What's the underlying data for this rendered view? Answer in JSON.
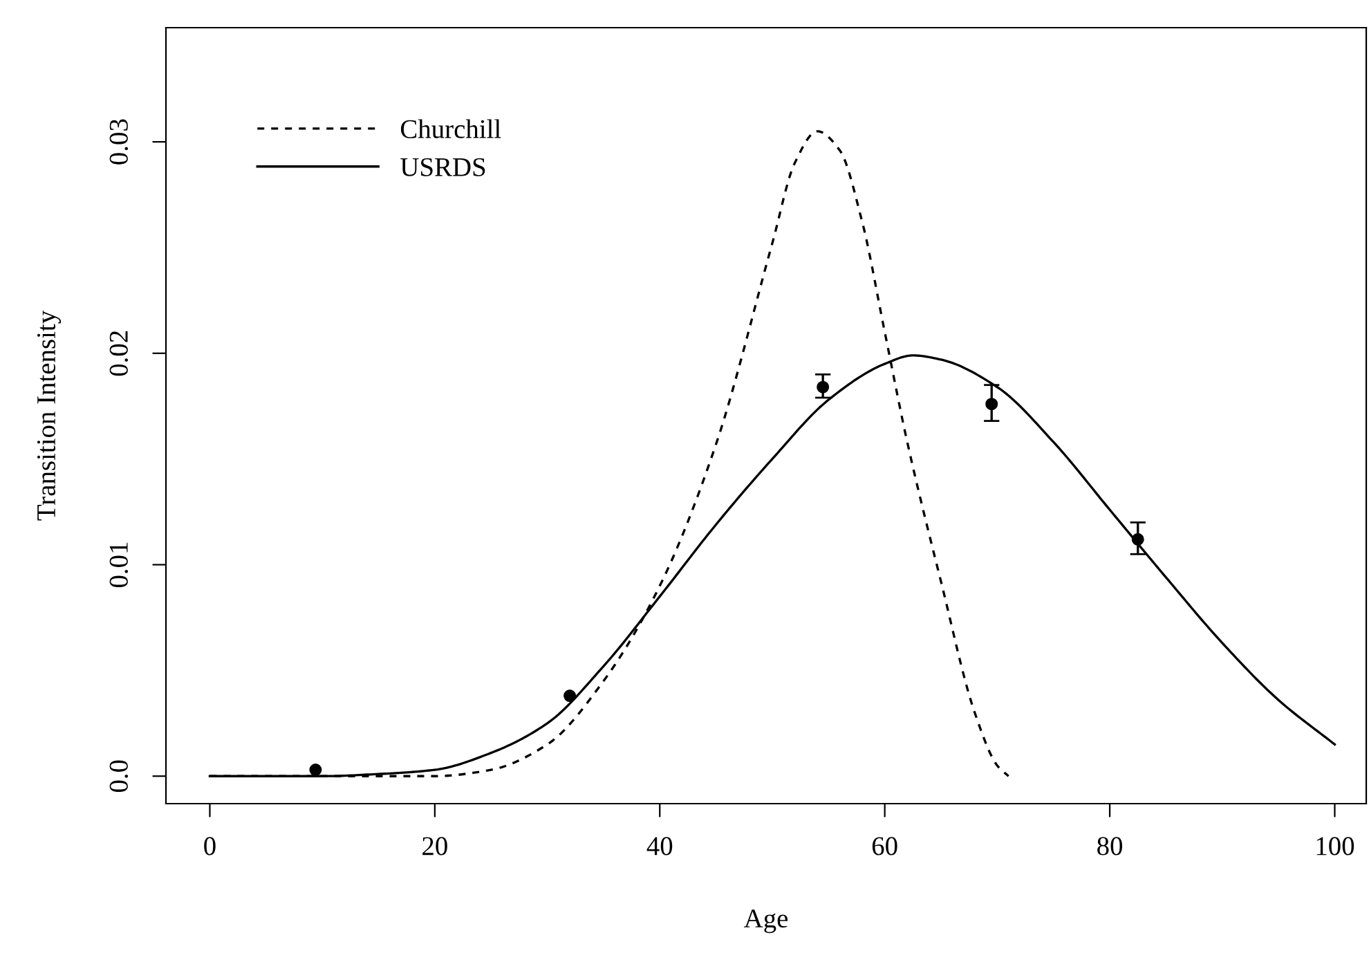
{
  "chart_data": {
    "type": "line",
    "xlabel": "Age",
    "ylabel": "Transition Intensity",
    "xlim": [
      -3.9,
      102.8
    ],
    "ylim": [
      -0.0013,
      0.0354
    ],
    "xticks": [
      0,
      20,
      40,
      60,
      80,
      100
    ],
    "yticks": [
      {
        "value": 0,
        "label": "0.0"
      },
      0.01,
      0.02,
      0.03
    ],
    "grid": false,
    "legend": "top left",
    "series": [
      {
        "name": "Churchill",
        "color": "#000000",
        "line_style": "dashed",
        "x": [
          0,
          20,
          25,
          30,
          35,
          40,
          45,
          50,
          52,
          54,
          56,
          58,
          60,
          62,
          65,
          68,
          70,
          71
        ],
        "values": [
          0,
          0.0,
          0.0003,
          0.0015,
          0.0045,
          0.009,
          0.0157,
          0.0252,
          0.029,
          0.0305,
          0.0296,
          0.0262,
          0.021,
          0.0158,
          0.0092,
          0.003,
          0.0005,
          0.0
        ]
      },
      {
        "name": "USRDS",
        "color": "#000000",
        "line_style": "solid",
        "x": [
          0,
          10,
          15,
          20,
          25,
          30,
          35,
          40,
          45,
          50,
          55,
          60,
          62.5,
          65,
          70,
          75,
          80,
          85,
          90,
          95,
          100
        ],
        "values": [
          0,
          0.0,
          0.0001,
          0.0003,
          0.0011,
          0.0025,
          0.0052,
          0.0085,
          0.0119,
          0.015,
          0.0178,
          0.0195,
          0.0199,
          0.0197,
          0.0184,
          0.0158,
          0.0126,
          0.0094,
          0.0063,
          0.0036,
          0.0015
        ]
      },
      {
        "type": "scatter",
        "color": "#000000",
        "marker": "circle",
        "x": [
          9.4,
          32,
          54.5,
          69.5,
          82.5
        ],
        "values": [
          0.0003,
          0.0038,
          0.0184,
          0.0176,
          0.0112
        ],
        "errors": [
          null,
          null,
          [
            0.0179,
            0.019
          ],
          [
            0.0168,
            0.0185
          ],
          [
            0.0105,
            0.012
          ]
        ]
      }
    ]
  }
}
